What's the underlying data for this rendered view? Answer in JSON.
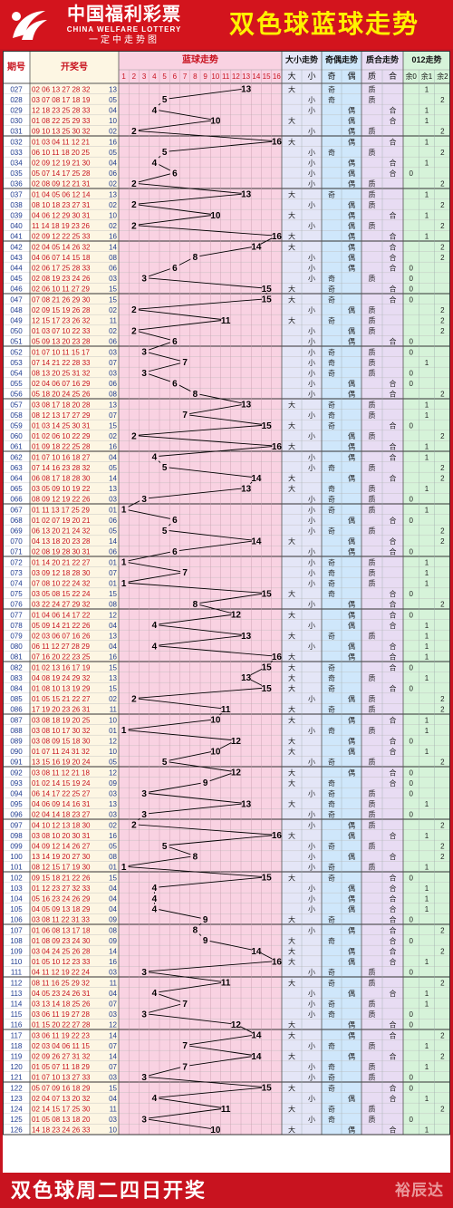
{
  "header": {
    "brand_cn": "中国福利彩票",
    "brand_en": "CHINA WELFARE LOTTERY",
    "brand_slogan": "一定中走势图",
    "title": "双色球蓝球走势"
  },
  "footer": {
    "text": "双色球周二四日开奖",
    "watermark": "裕辰达"
  },
  "colors": {
    "header_red": "#d3141d",
    "title_yellow": "#fff200",
    "blue_zone": "#f9d2e2",
    "line_color": "#000000"
  },
  "chart_data": {
    "type": "table",
    "title": "双色球蓝球走势",
    "column_headers": {
      "period": "期号",
      "draw": "开奖号",
      "blue_trend": "蓝球走势",
      "size_trend": "大小走势",
      "parity_trend": "奇偶走势",
      "prime_trend": "质合走势",
      "mod3_trend": "012走势"
    },
    "sub_headers": {
      "blue_numbers": [
        "1",
        "2",
        "3",
        "4",
        "5",
        "6",
        "7",
        "8",
        "9",
        "10",
        "11",
        "12",
        "13",
        "14",
        "15",
        "16"
      ],
      "size": [
        "大",
        "小"
      ],
      "parity": [
        "奇",
        "偶"
      ],
      "prime": [
        "质",
        "合"
      ],
      "mod3": [
        "余0",
        "余1",
        "余2"
      ]
    },
    "labels": {
      "big": "大",
      "small": "小",
      "odd": "奇",
      "even": "偶",
      "prime": "质",
      "composite": "合"
    },
    "periods": [
      "027",
      "028",
      "029",
      "030",
      "031",
      "032",
      "033",
      "034",
      "035",
      "036",
      "037",
      "038",
      "039",
      "040",
      "041",
      "042",
      "043",
      "044",
      "045",
      "046",
      "047",
      "048",
      "049",
      "050",
      "051",
      "052",
      "053",
      "054",
      "055",
      "056",
      "057",
      "058",
      "059",
      "060",
      "061",
      "062",
      "063",
      "064",
      "065",
      "066",
      "067",
      "068",
      "069",
      "070",
      "071",
      "072",
      "073",
      "074",
      "075",
      "076",
      "077",
      "078",
      "079",
      "080",
      "081",
      "082",
      "083",
      "084",
      "085",
      "086",
      "087",
      "088",
      "089",
      "090",
      "091",
      "092",
      "093",
      "094",
      "095",
      "096",
      "097",
      "098",
      "099",
      "100",
      "101",
      "102",
      "103",
      "104",
      "105",
      "106",
      "107",
      "108",
      "109",
      "110",
      "111",
      "112",
      "113",
      "114",
      "115",
      "116",
      "117",
      "118",
      "119",
      "120",
      "121",
      "122",
      "123",
      "124",
      "125",
      "126"
    ],
    "reds": [
      "02 06 13 27 28 32",
      "03 07 08 17 18 19",
      "12 18 23 25 28 33",
      "01 08 22 25 29 33",
      "09 10 13 25 30 32",
      "01 03 04 11 12 21",
      "06 10 11 18 20 25",
      "02 09 12 19 21 30",
      "05 07 14 17 25 28",
      "02 08 09 12 21 31",
      "01 04 05 06 12 14",
      "08 10 18 23 27 31",
      "04 06 12 29 30 31",
      "11 14 18 19 23 26",
      "02 09 12 22 25 33",
      "02 04 05 14 26 32",
      "04 06 07 14 15 18",
      "02 06 17 25 28 33",
      "02 08 19 23 24 26",
      "02 06 10 11 27 29",
      "07 08 21 26 29 30",
      "02 09 15 19 26 28",
      "12 15 17 23 26 32",
      "01 03 07 10 22 33",
      "05 09 13 20 23 28",
      "01 07 10 11 15 17",
      "07 14 21 22 28 33",
      "08 13 20 25 31 32",
      "02 04 06 07 16 29",
      "05 18 20 24 25 26",
      "03 08 17 18 20 28",
      "08 12 13 17 27 29",
      "01 03 14 25 30 31",
      "01 02 06 10 22 29",
      "01 09 18 22 25 28",
      "01 07 10 16 18 27",
      "07 14 16 23 28 32",
      "06 08 17 18 28 30",
      "03 05 09 10 19 22",
      "08 09 12 19 22 26",
      "01 11 13 17 25 29",
      "01 02 07 19 20 21",
      "06 13 20 21 24 32",
      "04 13 18 20 23 28",
      "02 08 19 28 30 31",
      "01 14 20 21 22 27",
      "03 09 12 18 28 30",
      "07 08 10 22 24 32",
      "03 05 08 15 22 24",
      "03 22 24 27 29 32",
      "01 04 06 14 17 22",
      "05 09 14 21 22 26",
      "02 03 06 07 16 26",
      "06 11 12 27 28 29",
      "07 16 20 22 23 25",
      "01 02 13 16 17 19",
      "04 08 19 24 29 32",
      "01 08 10 13 19 29",
      "01 05 15 21 22 27",
      "17 19 20 23 26 31",
      "03 08 18 19 20 25",
      "03 08 10 17 30 32",
      "03 08 09 15 18 30",
      "01 07 11 24 31 32",
      "13 15 16 19 20 24",
      "03 08 11 12 21 18",
      "01 02 14 15 19 24",
      "06 14 17 22 25 27",
      "04 06 09 14 16 31",
      "02 04 14 18 23 27",
      "04 10 12 13 18 30",
      "03 08 10 20 30 31",
      "04 09 12 14 26 27",
      "13 14 19 20 27 30",
      "08 12 15 17 19 30",
      "09 15 18 21 22 26",
      "01 12 23 27 32 33",
      "05 16 23 24 26 29",
      "04 05 09 13 18 29",
      "03 08 11 22 31 33",
      "01 06 08 13 17 18",
      "01 08 09 23 24 30",
      "03 04 24 25 26 28",
      "01 05 10 12 23 33",
      "04 11 12 19 22 24",
      "08 11 16 25 29 32",
      "04 05 23 24 26 31",
      "03 13 14 18 25 26",
      "03 06 11 19 27 28",
      "01 15 20 22 27 28",
      "03 06 11 19 22 23",
      "02 03 04 06 11 15",
      "02 09 26 27 31 32",
      "01 05 07 11 18 29",
      "01 07 10 13 27 33",
      "05 07 09 16 18 29",
      "02 04 07 13 20 32",
      "02 14 15 17 25 30",
      "01 05 08 13 18 20",
      "14 18 23 24 26 33"
    ],
    "blue": [
      13,
      5,
      4,
      10,
      2,
      16,
      5,
      4,
      6,
      2,
      13,
      2,
      10,
      2,
      16,
      14,
      8,
      6,
      3,
      15,
      15,
      2,
      11,
      2,
      6,
      3,
      7,
      3,
      6,
      8,
      13,
      7,
      15,
      2,
      16,
      4,
      5,
      14,
      13,
      3,
      1,
      6,
      5,
      14,
      6,
      1,
      7,
      1,
      15,
      8,
      12,
      4,
      13,
      4,
      16,
      15,
      13,
      15,
      2,
      11,
      10,
      1,
      12,
      10,
      5,
      12,
      9,
      3,
      13,
      3,
      2,
      16,
      5,
      8,
      1,
      15,
      4,
      4,
      4,
      9,
      8,
      9,
      14,
      16,
      3,
      11,
      4,
      7,
      3,
      12,
      14,
      7,
      14,
      7,
      3,
      15,
      4,
      11,
      3,
      10
    ],
    "ylim": [
      1,
      16
    ]
  }
}
